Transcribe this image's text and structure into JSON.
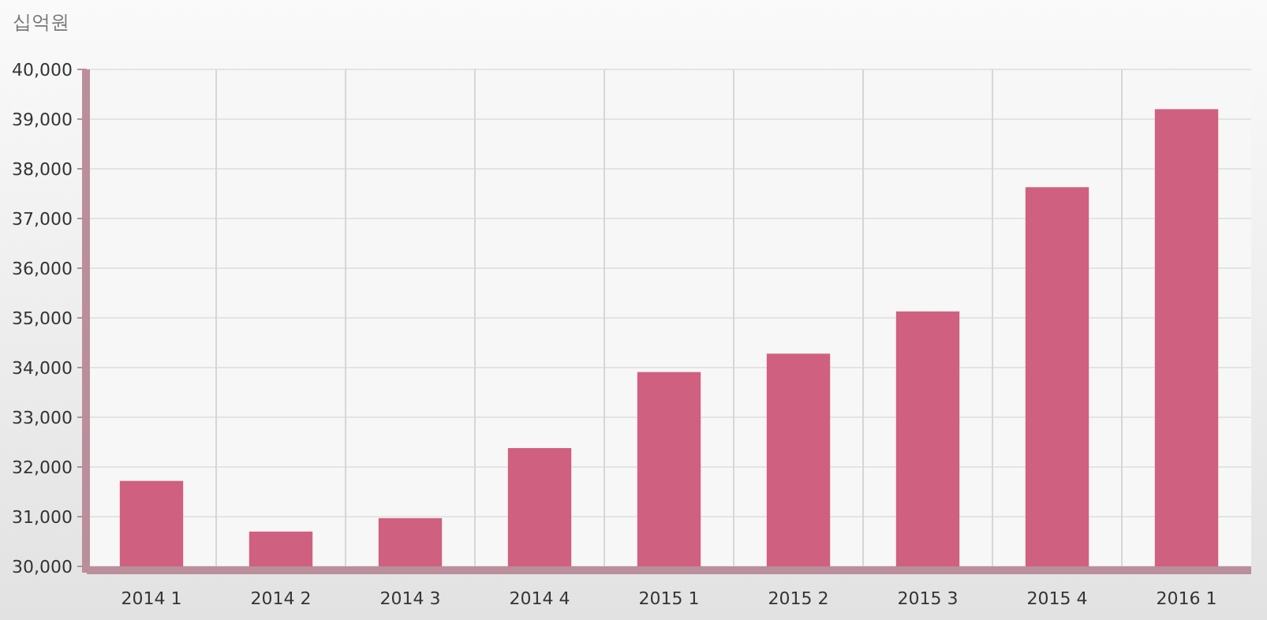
{
  "chart_data": {
    "type": "bar",
    "ylabel": "십억원",
    "categories": [
      "2014 1",
      "2014 2",
      "2014 3",
      "2014 4",
      "2015 1",
      "2015 2",
      "2015 3",
      "2015 4",
      "2016 1"
    ],
    "values": [
      31720,
      30700,
      30970,
      32380,
      33910,
      34280,
      35130,
      37630,
      39200
    ],
    "color": "#d0607f",
    "ylim": [
      30000,
      40000
    ],
    "yticks": [
      {
        "value": 30000,
        "label": "30,000"
      },
      {
        "value": 31000,
        "label": "31,000"
      },
      {
        "value": 32000,
        "label": "32,000"
      },
      {
        "value": 33000,
        "label": "33,000"
      },
      {
        "value": 34000,
        "label": "34,000"
      },
      {
        "value": 35000,
        "label": "35,000"
      },
      {
        "value": 36000,
        "label": "36,000"
      },
      {
        "value": 37000,
        "label": "37,000"
      },
      {
        "value": 38000,
        "label": "38,000"
      },
      {
        "value": 39000,
        "label": "39,000"
      },
      {
        "value": 40000,
        "label": "40,000"
      }
    ],
    "grid": true
  }
}
